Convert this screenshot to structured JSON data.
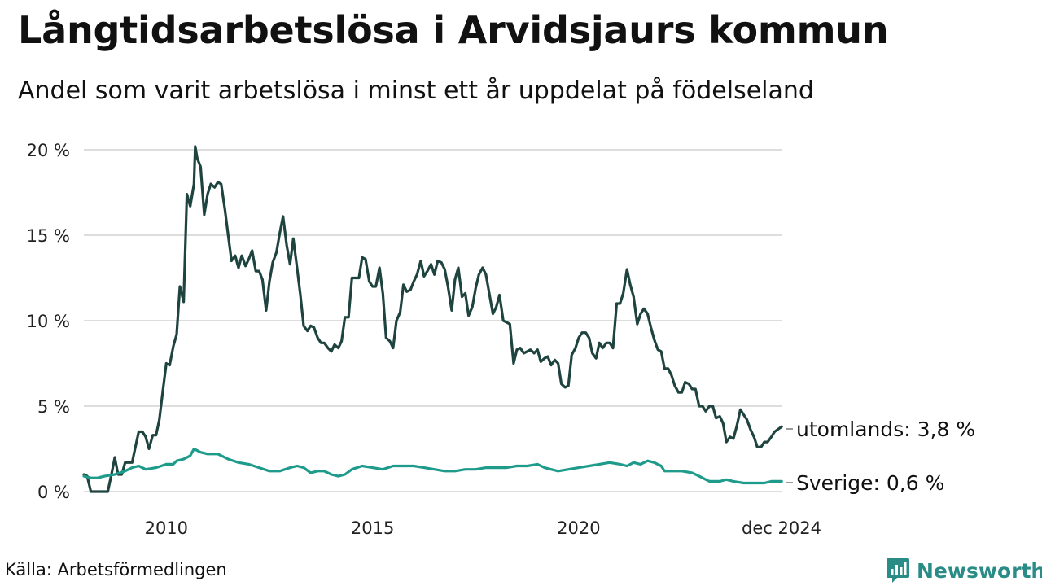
{
  "header": {
    "title": "Långtidsarbetslösa i Arvidsjaurs kommun",
    "subtitle": "Andel som varit arbetslösa i minst ett år uppdelat på födelseland"
  },
  "footer": {
    "source": "Källa: Arbetsförmedlingen",
    "brand": "Newsworthy"
  },
  "colors": {
    "utomlands": "#1f4440",
    "sverige": "#1e9b8a",
    "grid": "#dddddd",
    "brand": "#2a8c86"
  },
  "chart_data": {
    "type": "line",
    "title": "Långtidsarbetslösa i Arvidsjaurs kommun",
    "subtitle": "Andel som varit arbetslösa i minst ett år uppdelat på födelseland",
    "xlabel": "",
    "ylabel": "",
    "x_range": [
      2008.0,
      2024.917
    ],
    "ylim": [
      0,
      20
    ],
    "y_ticks": [
      {
        "value": 0,
        "label": "0 %"
      },
      {
        "value": 5,
        "label": "5 %"
      },
      {
        "value": 10,
        "label": "10 %"
      },
      {
        "value": 15,
        "label": "15 %"
      },
      {
        "value": 20,
        "label": "20 %"
      }
    ],
    "x_ticks": [
      {
        "value": 2010,
        "label": "2010"
      },
      {
        "value": 2015,
        "label": "2015"
      },
      {
        "value": 2020,
        "label": "2020"
      },
      {
        "value": 2024.917,
        "label": "dec 2024"
      }
    ],
    "grid": true,
    "series": [
      {
        "name": "utomlands",
        "end_label": "utomlands: 3,8 %",
        "color": "#1f4440",
        "points": [
          [
            2008.0,
            1.0
          ],
          [
            2008.08,
            0.9
          ],
          [
            2008.17,
            0.0
          ],
          [
            2008.33,
            0.0
          ],
          [
            2008.5,
            0.0
          ],
          [
            2008.58,
            0.0
          ],
          [
            2008.67,
            1.0
          ],
          [
            2008.75,
            2.0
          ],
          [
            2008.83,
            1.0
          ],
          [
            2008.92,
            1.0
          ],
          [
            2009.0,
            1.7
          ],
          [
            2009.17,
            1.7
          ],
          [
            2009.25,
            2.6
          ],
          [
            2009.33,
            3.5
          ],
          [
            2009.42,
            3.5
          ],
          [
            2009.5,
            3.2
          ],
          [
            2009.58,
            2.5
          ],
          [
            2009.67,
            3.3
          ],
          [
            2009.75,
            3.3
          ],
          [
            2009.83,
            4.2
          ],
          [
            2009.92,
            6.0
          ],
          [
            2010.0,
            7.5
          ],
          [
            2010.08,
            7.4
          ],
          [
            2010.17,
            8.5
          ],
          [
            2010.25,
            9.2
          ],
          [
            2010.33,
            12.0
          ],
          [
            2010.42,
            11.1
          ],
          [
            2010.5,
            17.4
          ],
          [
            2010.58,
            16.7
          ],
          [
            2010.67,
            18.0
          ],
          [
            2010.7,
            20.2
          ],
          [
            2010.75,
            19.5
          ],
          [
            2010.83,
            19.0
          ],
          [
            2010.92,
            16.2
          ],
          [
            2011.0,
            17.4
          ],
          [
            2011.08,
            18.0
          ],
          [
            2011.17,
            17.8
          ],
          [
            2011.25,
            18.1
          ],
          [
            2011.33,
            18.0
          ],
          [
            2011.42,
            16.5
          ],
          [
            2011.5,
            15.0
          ],
          [
            2011.58,
            13.5
          ],
          [
            2011.67,
            13.8
          ],
          [
            2011.75,
            13.1
          ],
          [
            2011.83,
            13.8
          ],
          [
            2011.92,
            13.2
          ],
          [
            2012.0,
            13.6
          ],
          [
            2012.08,
            14.1
          ],
          [
            2012.17,
            12.9
          ],
          [
            2012.25,
            12.9
          ],
          [
            2012.33,
            12.4
          ],
          [
            2012.42,
            10.6
          ],
          [
            2012.5,
            12.3
          ],
          [
            2012.58,
            13.4
          ],
          [
            2012.67,
            14.0
          ],
          [
            2012.75,
            15.1
          ],
          [
            2012.83,
            16.1
          ],
          [
            2012.92,
            14.4
          ],
          [
            2013.0,
            13.3
          ],
          [
            2013.08,
            14.8
          ],
          [
            2013.17,
            13.1
          ],
          [
            2013.25,
            11.5
          ],
          [
            2013.33,
            9.7
          ],
          [
            2013.42,
            9.4
          ],
          [
            2013.5,
            9.7
          ],
          [
            2013.58,
            9.6
          ],
          [
            2013.67,
            9.0
          ],
          [
            2013.75,
            8.7
          ],
          [
            2013.83,
            8.7
          ],
          [
            2013.92,
            8.4
          ],
          [
            2014.0,
            8.2
          ],
          [
            2014.08,
            8.6
          ],
          [
            2014.17,
            8.4
          ],
          [
            2014.25,
            8.8
          ],
          [
            2014.33,
            10.2
          ],
          [
            2014.42,
            10.2
          ],
          [
            2014.5,
            12.5
          ],
          [
            2014.58,
            12.5
          ],
          [
            2014.67,
            12.5
          ],
          [
            2014.75,
            13.7
          ],
          [
            2014.83,
            13.6
          ],
          [
            2014.92,
            12.3
          ],
          [
            2015.0,
            12.0
          ],
          [
            2015.08,
            12.0
          ],
          [
            2015.17,
            13.1
          ],
          [
            2015.25,
            11.6
          ],
          [
            2015.33,
            9.0
          ],
          [
            2015.42,
            8.8
          ],
          [
            2015.5,
            8.4
          ],
          [
            2015.58,
            10.0
          ],
          [
            2015.67,
            10.5
          ],
          [
            2015.75,
            12.1
          ],
          [
            2015.83,
            11.7
          ],
          [
            2015.92,
            11.8
          ],
          [
            2016.0,
            12.3
          ],
          [
            2016.08,
            12.7
          ],
          [
            2016.17,
            13.5
          ],
          [
            2016.25,
            12.6
          ],
          [
            2016.33,
            12.9
          ],
          [
            2016.42,
            13.3
          ],
          [
            2016.5,
            12.7
          ],
          [
            2016.58,
            13.5
          ],
          [
            2016.67,
            13.4
          ],
          [
            2016.75,
            13.0
          ],
          [
            2016.83,
            12.0
          ],
          [
            2016.92,
            10.6
          ],
          [
            2017.0,
            12.4
          ],
          [
            2017.08,
            13.1
          ],
          [
            2017.17,
            11.4
          ],
          [
            2017.25,
            11.6
          ],
          [
            2017.33,
            10.3
          ],
          [
            2017.42,
            10.8
          ],
          [
            2017.5,
            11.9
          ],
          [
            2017.58,
            12.7
          ],
          [
            2017.67,
            13.1
          ],
          [
            2017.75,
            12.7
          ],
          [
            2017.83,
            11.6
          ],
          [
            2017.92,
            10.4
          ],
          [
            2018.0,
            10.8
          ],
          [
            2018.08,
            11.5
          ],
          [
            2018.17,
            10.0
          ],
          [
            2018.25,
            9.9
          ],
          [
            2018.33,
            9.8
          ],
          [
            2018.42,
            7.5
          ],
          [
            2018.5,
            8.3
          ],
          [
            2018.58,
            8.4
          ],
          [
            2018.67,
            8.1
          ],
          [
            2018.75,
            8.2
          ],
          [
            2018.83,
            8.3
          ],
          [
            2018.92,
            8.1
          ],
          [
            2019.0,
            8.3
          ],
          [
            2019.08,
            7.6
          ],
          [
            2019.17,
            7.8
          ],
          [
            2019.25,
            7.9
          ],
          [
            2019.33,
            7.4
          ],
          [
            2019.42,
            7.7
          ],
          [
            2019.5,
            7.5
          ],
          [
            2019.58,
            6.3
          ],
          [
            2019.67,
            6.1
          ],
          [
            2019.75,
            6.2
          ],
          [
            2019.83,
            8.0
          ],
          [
            2019.92,
            8.4
          ],
          [
            2020.0,
            9.0
          ],
          [
            2020.08,
            9.3
          ],
          [
            2020.17,
            9.3
          ],
          [
            2020.25,
            9.0
          ],
          [
            2020.33,
            8.1
          ],
          [
            2020.42,
            7.8
          ],
          [
            2020.5,
            8.7
          ],
          [
            2020.58,
            8.4
          ],
          [
            2020.67,
            8.7
          ],
          [
            2020.75,
            8.7
          ],
          [
            2020.83,
            8.4
          ],
          [
            2020.92,
            11.0
          ],
          [
            2021.0,
            11.0
          ],
          [
            2021.08,
            11.6
          ],
          [
            2021.17,
            13.0
          ],
          [
            2021.25,
            12.1
          ],
          [
            2021.33,
            11.4
          ],
          [
            2021.42,
            9.8
          ],
          [
            2021.5,
            10.4
          ],
          [
            2021.58,
            10.7
          ],
          [
            2021.67,
            10.4
          ],
          [
            2021.75,
            9.6
          ],
          [
            2021.83,
            8.9
          ],
          [
            2021.92,
            8.3
          ],
          [
            2022.0,
            8.2
          ],
          [
            2022.08,
            7.2
          ],
          [
            2022.17,
            7.2
          ],
          [
            2022.25,
            6.8
          ],
          [
            2022.33,
            6.2
          ],
          [
            2022.42,
            5.8
          ],
          [
            2022.5,
            5.8
          ],
          [
            2022.58,
            6.4
          ],
          [
            2022.67,
            6.3
          ],
          [
            2022.75,
            6.0
          ],
          [
            2022.83,
            6.0
          ],
          [
            2022.92,
            5.0
          ],
          [
            2023.0,
            5.0
          ],
          [
            2023.08,
            4.7
          ],
          [
            2023.17,
            5.0
          ],
          [
            2023.25,
            5.0
          ],
          [
            2023.33,
            4.3
          ],
          [
            2023.42,
            4.4
          ],
          [
            2023.5,
            4.0
          ],
          [
            2023.58,
            2.9
          ],
          [
            2023.67,
            3.2
          ],
          [
            2023.75,
            3.1
          ],
          [
            2023.83,
            3.8
          ],
          [
            2023.92,
            4.8
          ],
          [
            2024.0,
            4.5
          ],
          [
            2024.08,
            4.2
          ],
          [
            2024.17,
            3.6
          ],
          [
            2024.25,
            3.2
          ],
          [
            2024.33,
            2.6
          ],
          [
            2024.42,
            2.6
          ],
          [
            2024.5,
            2.9
          ],
          [
            2024.58,
            2.9
          ],
          [
            2024.67,
            3.2
          ],
          [
            2024.75,
            3.5
          ],
          [
            2024.92,
            3.8
          ]
        ]
      },
      {
        "name": "Sverige",
        "end_label": "Sverige: 0,6 %",
        "color": "#1e9b8a",
        "points": [
          [
            2008.0,
            0.9
          ],
          [
            2008.17,
            0.8
          ],
          [
            2008.33,
            0.8
          ],
          [
            2008.5,
            0.9
          ],
          [
            2008.75,
            1.0
          ],
          [
            2009.0,
            1.2
          ],
          [
            2009.17,
            1.4
          ],
          [
            2009.33,
            1.5
          ],
          [
            2009.5,
            1.3
          ],
          [
            2009.75,
            1.4
          ],
          [
            2010.0,
            1.6
          ],
          [
            2010.17,
            1.6
          ],
          [
            2010.25,
            1.8
          ],
          [
            2010.42,
            1.9
          ],
          [
            2010.58,
            2.1
          ],
          [
            2010.67,
            2.5
          ],
          [
            2010.83,
            2.3
          ],
          [
            2011.0,
            2.2
          ],
          [
            2011.25,
            2.2
          ],
          [
            2011.5,
            1.9
          ],
          [
            2011.75,
            1.7
          ],
          [
            2012.0,
            1.6
          ],
          [
            2012.25,
            1.4
          ],
          [
            2012.5,
            1.2
          ],
          [
            2012.75,
            1.2
          ],
          [
            2013.0,
            1.4
          ],
          [
            2013.17,
            1.5
          ],
          [
            2013.33,
            1.4
          ],
          [
            2013.5,
            1.1
          ],
          [
            2013.67,
            1.2
          ],
          [
            2013.83,
            1.2
          ],
          [
            2014.0,
            1.0
          ],
          [
            2014.17,
            0.9
          ],
          [
            2014.33,
            1.0
          ],
          [
            2014.5,
            1.3
          ],
          [
            2014.75,
            1.5
          ],
          [
            2015.0,
            1.4
          ],
          [
            2015.25,
            1.3
          ],
          [
            2015.5,
            1.5
          ],
          [
            2015.75,
            1.5
          ],
          [
            2016.0,
            1.5
          ],
          [
            2016.25,
            1.4
          ],
          [
            2016.5,
            1.3
          ],
          [
            2016.75,
            1.2
          ],
          [
            2017.0,
            1.2
          ],
          [
            2017.25,
            1.3
          ],
          [
            2017.5,
            1.3
          ],
          [
            2017.75,
            1.4
          ],
          [
            2018.0,
            1.4
          ],
          [
            2018.25,
            1.4
          ],
          [
            2018.5,
            1.5
          ],
          [
            2018.75,
            1.5
          ],
          [
            2019.0,
            1.6
          ],
          [
            2019.17,
            1.4
          ],
          [
            2019.33,
            1.3
          ],
          [
            2019.5,
            1.2
          ],
          [
            2019.75,
            1.3
          ],
          [
            2020.0,
            1.4
          ],
          [
            2020.25,
            1.5
          ],
          [
            2020.5,
            1.6
          ],
          [
            2020.75,
            1.7
          ],
          [
            2021.0,
            1.6
          ],
          [
            2021.17,
            1.5
          ],
          [
            2021.33,
            1.7
          ],
          [
            2021.5,
            1.6
          ],
          [
            2021.67,
            1.8
          ],
          [
            2021.83,
            1.7
          ],
          [
            2022.0,
            1.5
          ],
          [
            2022.08,
            1.2
          ],
          [
            2022.25,
            1.2
          ],
          [
            2022.5,
            1.2
          ],
          [
            2022.75,
            1.1
          ],
          [
            2022.92,
            0.9
          ],
          [
            2023.0,
            0.8
          ],
          [
            2023.17,
            0.6
          ],
          [
            2023.42,
            0.6
          ],
          [
            2023.58,
            0.7
          ],
          [
            2023.75,
            0.6
          ],
          [
            2024.0,
            0.5
          ],
          [
            2024.17,
            0.5
          ],
          [
            2024.33,
            0.5
          ],
          [
            2024.5,
            0.5
          ],
          [
            2024.67,
            0.6
          ],
          [
            2024.92,
            0.6
          ]
        ]
      }
    ]
  }
}
